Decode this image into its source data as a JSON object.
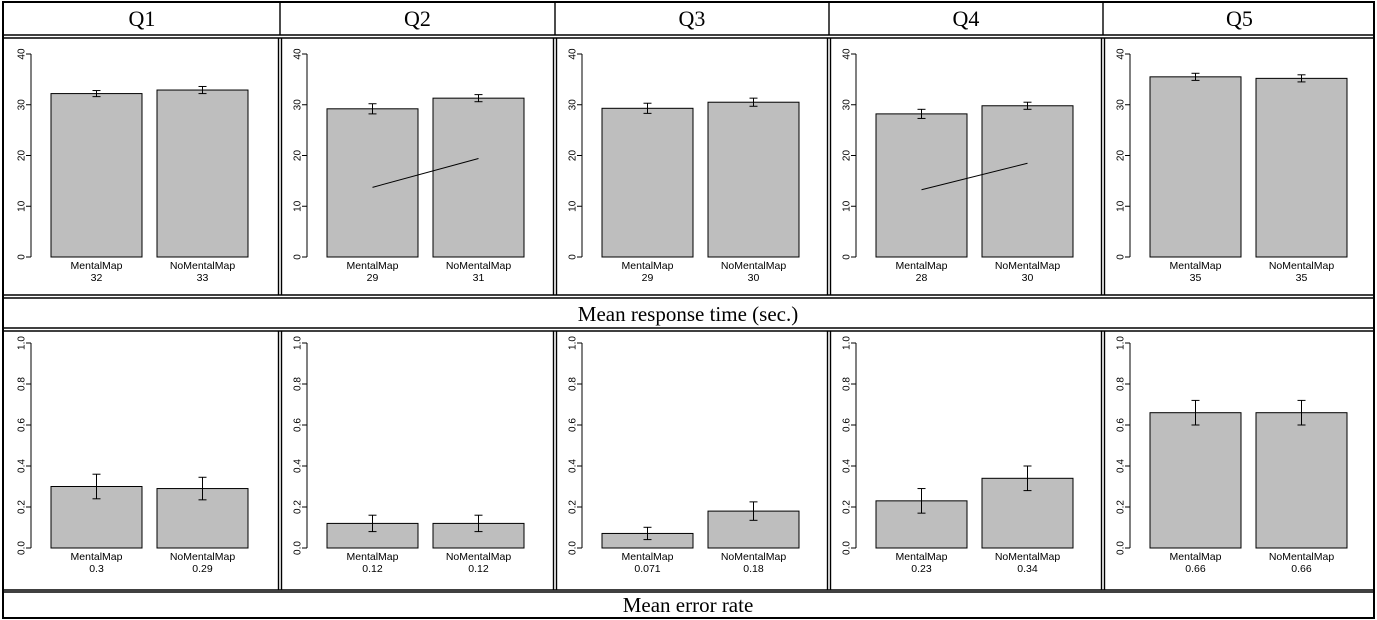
{
  "panel_headers": [
    "Q1",
    "Q2",
    "Q3",
    "Q4",
    "Q5"
  ],
  "row_labels": [
    "Mean response time (sec.)",
    "Mean error rate"
  ],
  "chart_data": [
    {
      "type": "bar",
      "metric": "Mean response time (sec.)",
      "ylim": [
        0,
        40
      ],
      "yticks": [
        "0",
        "10",
        "20",
        "30",
        "40"
      ],
      "ytick_values": [
        0,
        10,
        20,
        30,
        40
      ],
      "panels": [
        {
          "title": "Q1",
          "categories": [
            "MentalMap",
            "NoMentalMap"
          ],
          "values": [
            32.2,
            32.9
          ],
          "error": [
            0.6,
            0.7
          ],
          "value_labels": [
            "32",
            "33"
          ],
          "trend_line": false
        },
        {
          "title": "Q2",
          "categories": [
            "MentalMap",
            "NoMentalMap"
          ],
          "values": [
            29.2,
            31.3
          ],
          "error": [
            1.0,
            0.7
          ],
          "value_labels": [
            "29",
            "31"
          ],
          "trend_line": true
        },
        {
          "title": "Q3",
          "categories": [
            "MentalMap",
            "NoMentalMap"
          ],
          "values": [
            29.3,
            30.5
          ],
          "error": [
            1.0,
            0.8
          ],
          "value_labels": [
            "29",
            "30"
          ],
          "trend_line": false
        },
        {
          "title": "Q4",
          "categories": [
            "MentalMap",
            "NoMentalMap"
          ],
          "values": [
            28.2,
            29.8
          ],
          "error": [
            0.9,
            0.7
          ],
          "value_labels": [
            "28",
            "30"
          ],
          "trend_line": true
        },
        {
          "title": "Q5",
          "categories": [
            "MentalMap",
            "NoMentalMap"
          ],
          "values": [
            35.5,
            35.2
          ],
          "error": [
            0.7,
            0.7
          ],
          "value_labels": [
            "35",
            "35"
          ],
          "trend_line": false
        }
      ]
    },
    {
      "type": "bar",
      "metric": "Mean error rate",
      "ylim": [
        0,
        1
      ],
      "yticks": [
        "0.0",
        "0.2",
        "0.4",
        "0.6",
        "0.8",
        "1.0"
      ],
      "ytick_values": [
        0,
        0.2,
        0.4,
        0.6,
        0.8,
        1.0
      ],
      "panels": [
        {
          "title": "Q1",
          "categories": [
            "MentalMap",
            "NoMentalMap"
          ],
          "values": [
            0.3,
            0.29
          ],
          "error": [
            0.06,
            0.055
          ],
          "value_labels": [
            "0.3",
            "0.29"
          ],
          "trend_line": false
        },
        {
          "title": "Q2",
          "categories": [
            "MentalMap",
            "NoMentalMap"
          ],
          "values": [
            0.12,
            0.12
          ],
          "error": [
            0.04,
            0.04
          ],
          "value_labels": [
            "0.12",
            "0.12"
          ],
          "trend_line": false
        },
        {
          "title": "Q3",
          "categories": [
            "MentalMap",
            "NoMentalMap"
          ],
          "values": [
            0.071,
            0.18
          ],
          "error": [
            0.03,
            0.045
          ],
          "value_labels": [
            "0.071",
            "0.18"
          ],
          "trend_line": false
        },
        {
          "title": "Q4",
          "categories": [
            "MentalMap",
            "NoMentalMap"
          ],
          "values": [
            0.23,
            0.34
          ],
          "error": [
            0.06,
            0.06
          ],
          "value_labels": [
            "0.23",
            "0.34"
          ],
          "trend_line": false
        },
        {
          "title": "Q5",
          "categories": [
            "MentalMap",
            "NoMentalMap"
          ],
          "values": [
            0.66,
            0.66
          ],
          "error": [
            0.06,
            0.06
          ],
          "value_labels": [
            "0.66",
            "0.66"
          ],
          "trend_line": false
        }
      ]
    }
  ],
  "colors": {
    "bar_fill": "#bebebe",
    "stroke": "#000000",
    "background": "#ffffff"
  }
}
